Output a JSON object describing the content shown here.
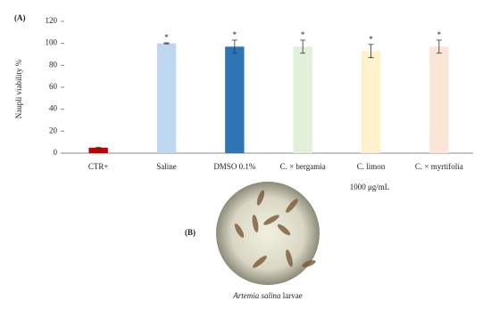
{
  "panel_a": "(A)",
  "chart_data": {
    "type": "bar",
    "y_label": "Naupli viability %",
    "categories": [
      "CTR+",
      "Saline",
      "DMSO 0.1%",
      "C. × bergamia",
      "C. limon",
      "C. × myrtifolia"
    ],
    "values": [
      5,
      100,
      97,
      97,
      93,
      97
    ],
    "errors": [
      0.5,
      0.5,
      6,
      6,
      6,
      6
    ],
    "markers": [
      null,
      "*",
      "*",
      "*",
      "*",
      "*"
    ],
    "colors": [
      "#c00000",
      "#bdd7ee",
      "#2e75b6",
      "#e2efda",
      "#fff2cc",
      "#fbe5d6"
    ],
    "ylim": [
      0,
      120
    ],
    "yticks": [
      0,
      20,
      40,
      60,
      80,
      100,
      120
    ],
    "grid": false
  },
  "note": "1000 μg/mL",
  "panel_b": "(B)",
  "caption": {
    "italic": "Artemia salina",
    "rest": "larvae"
  }
}
